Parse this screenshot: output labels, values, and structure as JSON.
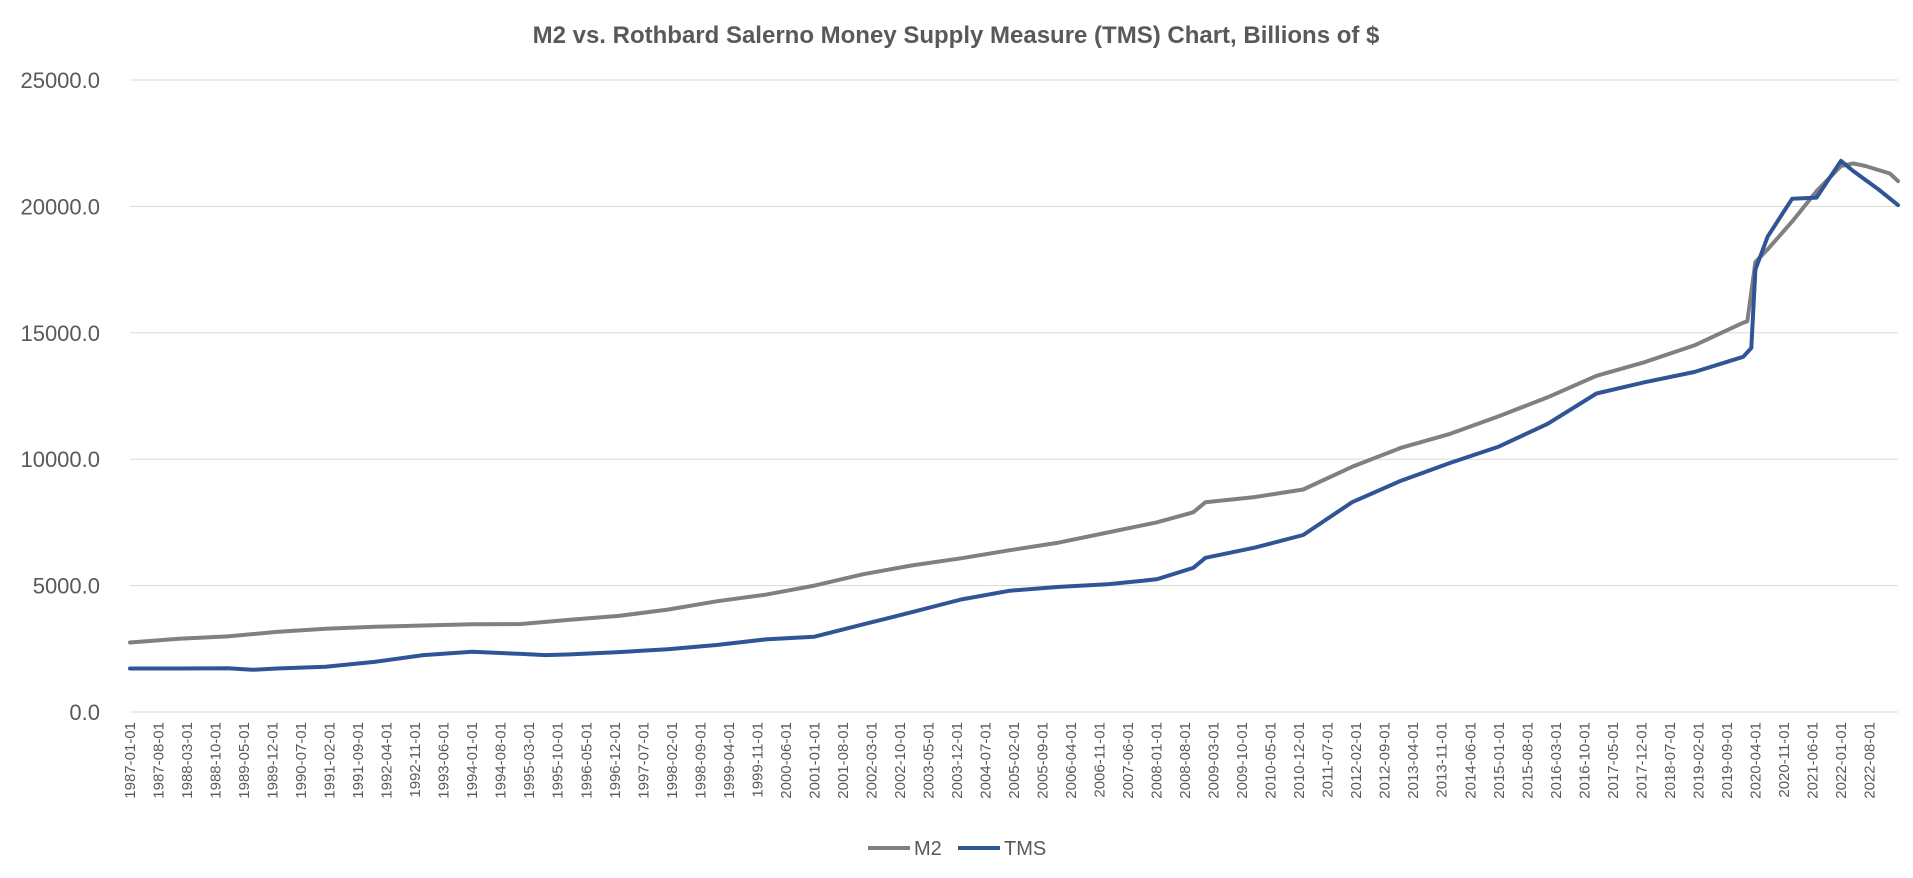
{
  "chart_data": {
    "type": "line",
    "title": "M2 vs. Rothbard Salerno Money Supply Measure (TMS) Chart, Billions of $",
    "xlabel": "",
    "ylabel": "",
    "ylim": [
      0,
      25000
    ],
    "yticks": [
      "0.0",
      "5000.0",
      "10000.0",
      "15000.0",
      "20000.0",
      "25000.0"
    ],
    "x_range": [
      "1987-01",
      "2023-03"
    ],
    "xtick_labels": [
      "1987-01-01",
      "1987-08-01",
      "1988-03-01",
      "1988-10-01",
      "1989-05-01",
      "1989-12-01",
      "1990-07-01",
      "1991-02-01",
      "1991-09-01",
      "1992-04-01",
      "1992-11-01",
      "1993-06-01",
      "1994-01-01",
      "1994-08-01",
      "1995-03-01",
      "1995-10-01",
      "1996-05-01",
      "1996-12-01",
      "1997-07-01",
      "1998-02-01",
      "1998-09-01",
      "1999-04-01",
      "1999-11-01",
      "2000-06-01",
      "2001-01-01",
      "2001-08-01",
      "2002-03-01",
      "2002-10-01",
      "2003-05-01",
      "2003-12-01",
      "2004-07-01",
      "2005-02-01",
      "2005-09-01",
      "2006-04-01",
      "2006-11-01",
      "2007-06-01",
      "2008-01-01",
      "2008-08-01",
      "2009-03-01",
      "2009-10-01",
      "2010-05-01",
      "2010-12-01",
      "2011-07-01",
      "2012-02-01",
      "2012-09-01",
      "2013-04-01",
      "2013-11-01",
      "2014-06-01",
      "2015-01-01",
      "2015-08-01",
      "2016-03-01",
      "2016-10-01",
      "2017-05-01",
      "2017-12-01",
      "2018-07-01",
      "2019-02-01",
      "2019-09-01",
      "2020-04-01",
      "2020-11-01",
      "2021-06-01",
      "2022-01-01",
      "2022-08-01"
    ],
    "grid": true,
    "legend": "bottom",
    "series": [
      {
        "name": "M2",
        "color": "#808080",
        "points": [
          [
            "1987-01",
            2750
          ],
          [
            "1988-01",
            2900
          ],
          [
            "1989-01",
            2990
          ],
          [
            "1990-01",
            3170
          ],
          [
            "1991-01",
            3290
          ],
          [
            "1992-01",
            3370
          ],
          [
            "1993-01",
            3420
          ],
          [
            "1994-01",
            3470
          ],
          [
            "1995-01",
            3480
          ],
          [
            "1996-01",
            3650
          ],
          [
            "1997-01",
            3800
          ],
          [
            "1998-01",
            4050
          ],
          [
            "1999-01",
            4380
          ],
          [
            "2000-01",
            4640
          ],
          [
            "2001-01",
            5000
          ],
          [
            "2002-01",
            5450
          ],
          [
            "2003-01",
            5800
          ],
          [
            "2004-01",
            6080
          ],
          [
            "2005-01",
            6400
          ],
          [
            "2006-01",
            6700
          ],
          [
            "2007-01",
            7100
          ],
          [
            "2008-01",
            7500
          ],
          [
            "2008-10",
            7900
          ],
          [
            "2009-01",
            8300
          ],
          [
            "2010-01",
            8500
          ],
          [
            "2011-01",
            8800
          ],
          [
            "2012-01",
            9700
          ],
          [
            "2013-01",
            10450
          ],
          [
            "2014-01",
            11000
          ],
          [
            "2015-01",
            11700
          ],
          [
            "2016-01",
            12450
          ],
          [
            "2017-01",
            13300
          ],
          [
            "2018-01",
            13850
          ],
          [
            "2019-01",
            14500
          ],
          [
            "2020-01",
            15400
          ],
          [
            "2020-02",
            15450
          ],
          [
            "2020-04",
            17800
          ],
          [
            "2020-07",
            18300
          ],
          [
            "2021-01",
            19400
          ],
          [
            "2021-07",
            20600
          ],
          [
            "2022-01",
            21600
          ],
          [
            "2022-04",
            21700
          ],
          [
            "2022-07",
            21600
          ],
          [
            "2023-01",
            21300
          ],
          [
            "2023-03",
            21000
          ]
        ]
      },
      {
        "name": "TMS",
        "color": "#2f5597",
        "points": [
          [
            "1987-01",
            1720
          ],
          [
            "1988-01",
            1720
          ],
          [
            "1989-01",
            1730
          ],
          [
            "1989-07",
            1670
          ],
          [
            "1990-01",
            1720
          ],
          [
            "1991-01",
            1790
          ],
          [
            "1992-01",
            1980
          ],
          [
            "1993-01",
            2250
          ],
          [
            "1994-01",
            2380
          ],
          [
            "1995-01",
            2300
          ],
          [
            "1995-07",
            2250
          ],
          [
            "1996-01",
            2280
          ],
          [
            "1997-01",
            2370
          ],
          [
            "1998-01",
            2480
          ],
          [
            "1999-01",
            2650
          ],
          [
            "2000-01",
            2870
          ],
          [
            "2001-01",
            2980
          ],
          [
            "2002-01",
            3470
          ],
          [
            "2003-01",
            3950
          ],
          [
            "2004-01",
            4450
          ],
          [
            "2005-01",
            4800
          ],
          [
            "2006-01",
            4950
          ],
          [
            "2007-01",
            5050
          ],
          [
            "2008-01",
            5250
          ],
          [
            "2008-10",
            5700
          ],
          [
            "2009-01",
            6100
          ],
          [
            "2010-01",
            6500
          ],
          [
            "2011-01",
            7000
          ],
          [
            "2012-01",
            8300
          ],
          [
            "2013-01",
            9150
          ],
          [
            "2014-01",
            9850
          ],
          [
            "2015-01",
            10500
          ],
          [
            "2016-01",
            11400
          ],
          [
            "2017-01",
            12600
          ],
          [
            "2018-01",
            13050
          ],
          [
            "2019-01",
            13450
          ],
          [
            "2020-01",
            14050
          ],
          [
            "2020-03",
            14400
          ],
          [
            "2020-04",
            17500
          ],
          [
            "2020-07",
            18800
          ],
          [
            "2021-01",
            20300
          ],
          [
            "2021-07",
            20350
          ],
          [
            "2022-01",
            21800
          ],
          [
            "2022-04",
            21400
          ],
          [
            "2022-10",
            20700
          ],
          [
            "2023-03",
            20050
          ]
        ]
      }
    ]
  }
}
